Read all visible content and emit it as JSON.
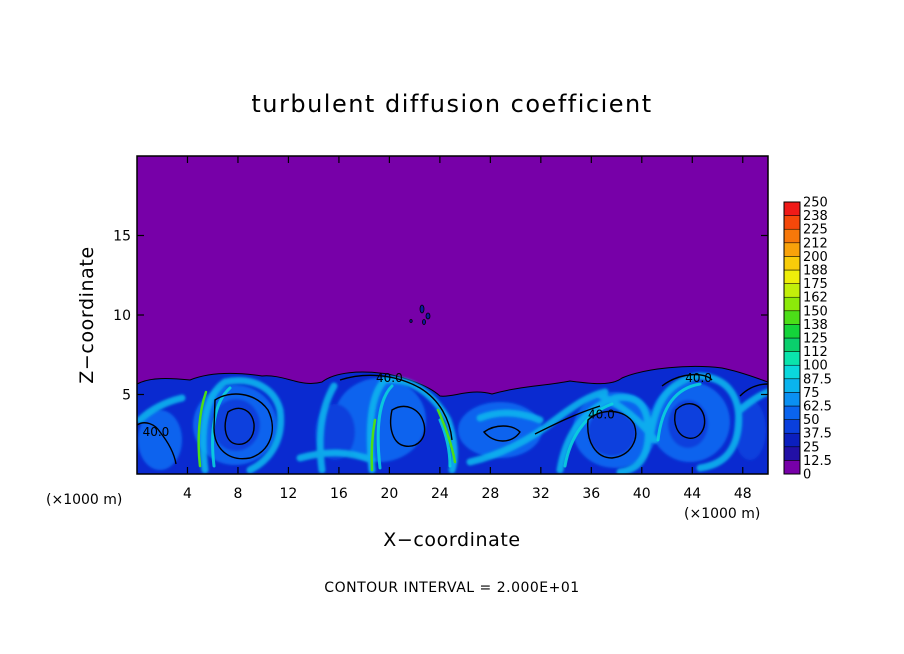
{
  "chart_data": {
    "type": "heatmap",
    "title": "turbulent diffusion coefficient",
    "xlabel": "X−coordinate",
    "ylabel": "Z−coordinate",
    "x_unit_left": "(×1000 m)",
    "x_unit_right": "(×1000 m)",
    "xlim": [
      0,
      50
    ],
    "ylim": [
      0,
      20
    ],
    "x_ticks": [
      4,
      8,
      12,
      16,
      20,
      24,
      28,
      32,
      36,
      40,
      44,
      48
    ],
    "y_ticks": [
      5,
      10,
      15
    ],
    "contour_info": "CONTOUR INTERVAL = 2.000E+01",
    "contour_labels": [
      {
        "text": "40.0",
        "x": 1.5,
        "z": 2.4
      },
      {
        "text": "40.0",
        "x": 20.0,
        "z": 5.8
      },
      {
        "text": "40.0",
        "x": 36.8,
        "z": 3.5
      },
      {
        "text": "40.0",
        "x": 44.5,
        "z": 5.8
      }
    ],
    "colorbar": {
      "levels": [
        "0",
        "12.5",
        "25",
        "37.5",
        "50",
        "62.5",
        "75",
        "87.5",
        "100",
        "112",
        "125",
        "138",
        "150",
        "162",
        "175",
        "188",
        "200",
        "212",
        "225",
        "238",
        "250"
      ],
      "colors": [
        "#7700a8",
        "#2210a6",
        "#0b1fbe",
        "#0a3fdd",
        "#0a64ee",
        "#0a90f2",
        "#0ab4ee",
        "#0ad8dc",
        "#0ae4ac",
        "#0acf6c",
        "#14d43a",
        "#4cde18",
        "#8cea0a",
        "#c2ef0a",
        "#eeee0a",
        "#f8cc0a",
        "#f8a20a",
        "#f7780a",
        "#f5480a",
        "#f01a18",
        "#f06070"
      ]
    },
    "colors": {
      "background_field": "#7700a8",
      "contour_line": "#000000"
    }
  }
}
